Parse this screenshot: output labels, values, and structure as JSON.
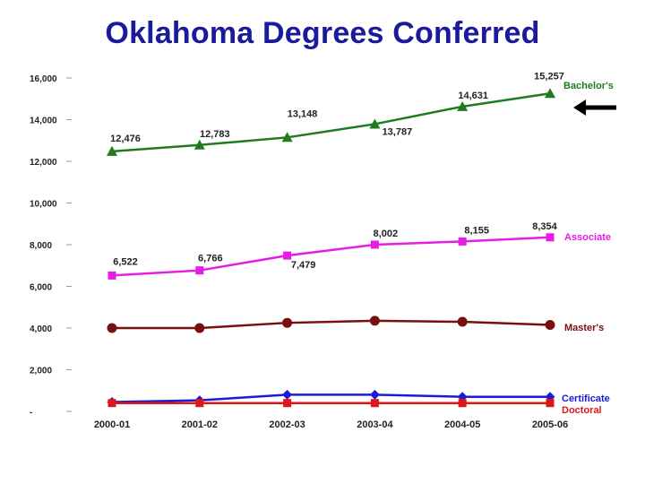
{
  "chart_data": {
    "type": "line",
    "title": "Oklahoma Degrees Conferred",
    "categories": [
      "2000-01",
      "2001-02",
      "2002-03",
      "2003-04",
      "2004-05",
      "2005-06"
    ],
    "ylim": [
      0,
      16000
    ],
    "yticks": [
      {
        "value": 0,
        "label": "-"
      },
      {
        "value": 2000,
        "label": "2,000"
      },
      {
        "value": 4000,
        "label": "4,000"
      },
      {
        "value": 6000,
        "label": "6,000"
      },
      {
        "value": 8000,
        "label": "8,000"
      },
      {
        "value": 10000,
        "label": "10,000"
      },
      {
        "value": 12000,
        "label": "12,000"
      },
      {
        "value": 14000,
        "label": "14,000"
      },
      {
        "value": 16000,
        "label": "16,000"
      }
    ],
    "grid": false,
    "series": [
      {
        "name": "Bachelor's",
        "color": "#1e7b1e",
        "marker": "triangle",
        "values": [
          12476,
          12783,
          13148,
          13787,
          14631,
          15257
        ],
        "data_labels": [
          "12,476",
          "12,783",
          "13,148",
          "13,787",
          "14,631",
          "15,257"
        ]
      },
      {
        "name": "Associate",
        "color": "#e61ce6",
        "marker": "square",
        "values": [
          6522,
          6766,
          7479,
          8002,
          8155,
          8354
        ],
        "data_labels": [
          "6,522",
          "6,766",
          "7,479",
          "8,002",
          "8,155",
          "8,354"
        ]
      },
      {
        "name": "Master's",
        "color": "#7a0f0f",
        "marker": "circle",
        "values": [
          4000,
          4000,
          4250,
          4350,
          4300,
          4150
        ],
        "data_labels": []
      },
      {
        "name": "Certificate",
        "color": "#1c1cd6",
        "marker": "diamond",
        "values": [
          450,
          530,
          800,
          800,
          700,
          700
        ],
        "data_labels": []
      },
      {
        "name": "Doctoral",
        "color": "#e01515",
        "marker": "square",
        "values": [
          400,
          400,
          400,
          400,
          400,
          400
        ],
        "data_labels": []
      }
    ]
  }
}
